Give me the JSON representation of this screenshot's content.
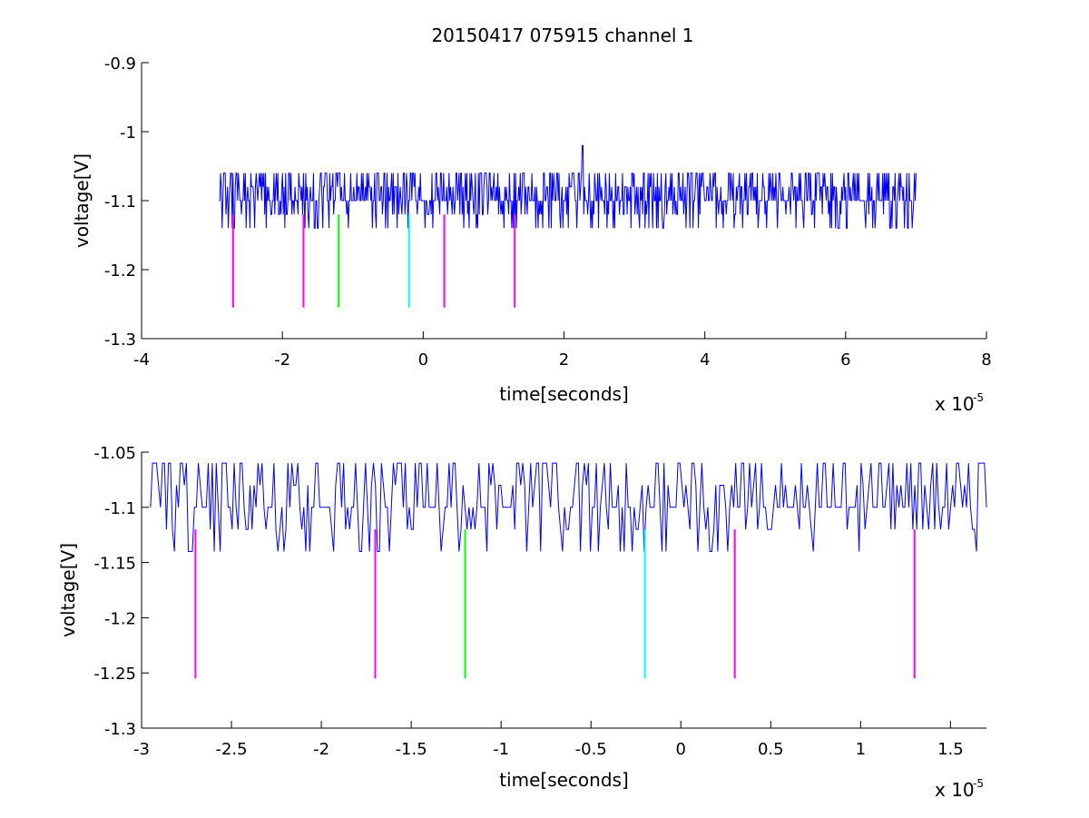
{
  "figure": {
    "title": "20150417 075915 channel 1",
    "colors": {
      "trace": "#0000ff",
      "magenta": "#ff00ff",
      "green": "#00ff00",
      "cyan": "#00ffff",
      "axes": "#000000"
    }
  },
  "chart_data": [
    {
      "type": "line",
      "title": "20150417 075915 channel 1",
      "xlabel": "time[seconds]",
      "ylabel": "voltage[V]",
      "x_multiplier_label": {
        "base": "x 10",
        "exp": "-5"
      },
      "xlim": [
        -4,
        8
      ],
      "ylim": [
        -1.3,
        -0.9
      ],
      "xticks": [
        -4,
        -2,
        0,
        2,
        4,
        6,
        8
      ],
      "xtick_labels": [
        "-4",
        "-2",
        "0",
        "2",
        "4",
        "6",
        "8"
      ],
      "yticks": [
        -0.9,
        -1,
        -1.1,
        -1.2,
        -1.3
      ],
      "ytick_labels": [
        "-0.9",
        "-1",
        "-1.1",
        "-1.2",
        "-1.3"
      ],
      "grid": false,
      "series": [
        {
          "x_range": [
            -2.9,
            7.0
          ],
          "baseline": -1.1,
          "quantized_levels": [
            -1.14,
            -1.12,
            -1.1,
            -1.08,
            -1.06
          ],
          "spike": {
            "x": 2.27,
            "y": -1.02
          }
        }
      ],
      "markers": [
        {
          "x": -2.7,
          "y_top": -1.12,
          "y_bottom": -1.255,
          "color": "magenta"
        },
        {
          "x": -1.7,
          "y_top": -1.12,
          "y_bottom": -1.255,
          "color": "magenta"
        },
        {
          "x": -1.2,
          "y_top": -1.12,
          "y_bottom": -1.255,
          "color": "green"
        },
        {
          "x": -0.2,
          "y_top": -1.12,
          "y_bottom": -1.255,
          "color": "cyan"
        },
        {
          "x": 0.3,
          "y_top": -1.12,
          "y_bottom": -1.255,
          "color": "magenta"
        },
        {
          "x": 1.3,
          "y_top": -1.12,
          "y_bottom": -1.255,
          "color": "magenta"
        }
      ]
    },
    {
      "type": "line",
      "title": "",
      "xlabel": "time[seconds]",
      "ylabel": "voltage[V]",
      "x_multiplier_label": {
        "base": "x 10",
        "exp": "-5"
      },
      "xlim": [
        -3.0,
        1.7
      ],
      "ylim": [
        -1.3,
        -1.05
      ],
      "xticks": [
        -3,
        -2.5,
        -2,
        -1.5,
        -1,
        -0.5,
        0,
        0.5,
        1,
        1.5
      ],
      "xtick_labels": [
        "-3",
        "-2.5",
        "-2",
        "-1.5",
        "-1",
        "-0.5",
        "0",
        "0.5",
        "1",
        "1.5"
      ],
      "yticks": [
        -1.05,
        -1.1,
        -1.15,
        -1.2,
        -1.25,
        -1.3
      ],
      "ytick_labels": [
        "-1.05",
        "-1.1",
        "-1.15",
        "-1.2",
        "-1.25",
        "-1.3"
      ],
      "grid": false,
      "series": [
        {
          "x_range": [
            -2.95,
            1.7
          ],
          "baseline": -1.1,
          "quantized_levels": [
            -1.14,
            -1.12,
            -1.1,
            -1.08,
            -1.06
          ]
        }
      ],
      "markers": [
        {
          "x": -2.7,
          "y_top": -1.12,
          "y_bottom": -1.255,
          "color": "magenta"
        },
        {
          "x": -1.7,
          "y_top": -1.12,
          "y_bottom": -1.255,
          "color": "magenta"
        },
        {
          "x": -1.2,
          "y_top": -1.12,
          "y_bottom": -1.255,
          "color": "green"
        },
        {
          "x": -0.2,
          "y_top": -1.12,
          "y_bottom": -1.255,
          "color": "cyan"
        },
        {
          "x": 0.3,
          "y_top": -1.12,
          "y_bottom": -1.255,
          "color": "magenta"
        },
        {
          "x": 1.3,
          "y_top": -1.12,
          "y_bottom": -1.255,
          "color": "magenta"
        }
      ]
    }
  ]
}
